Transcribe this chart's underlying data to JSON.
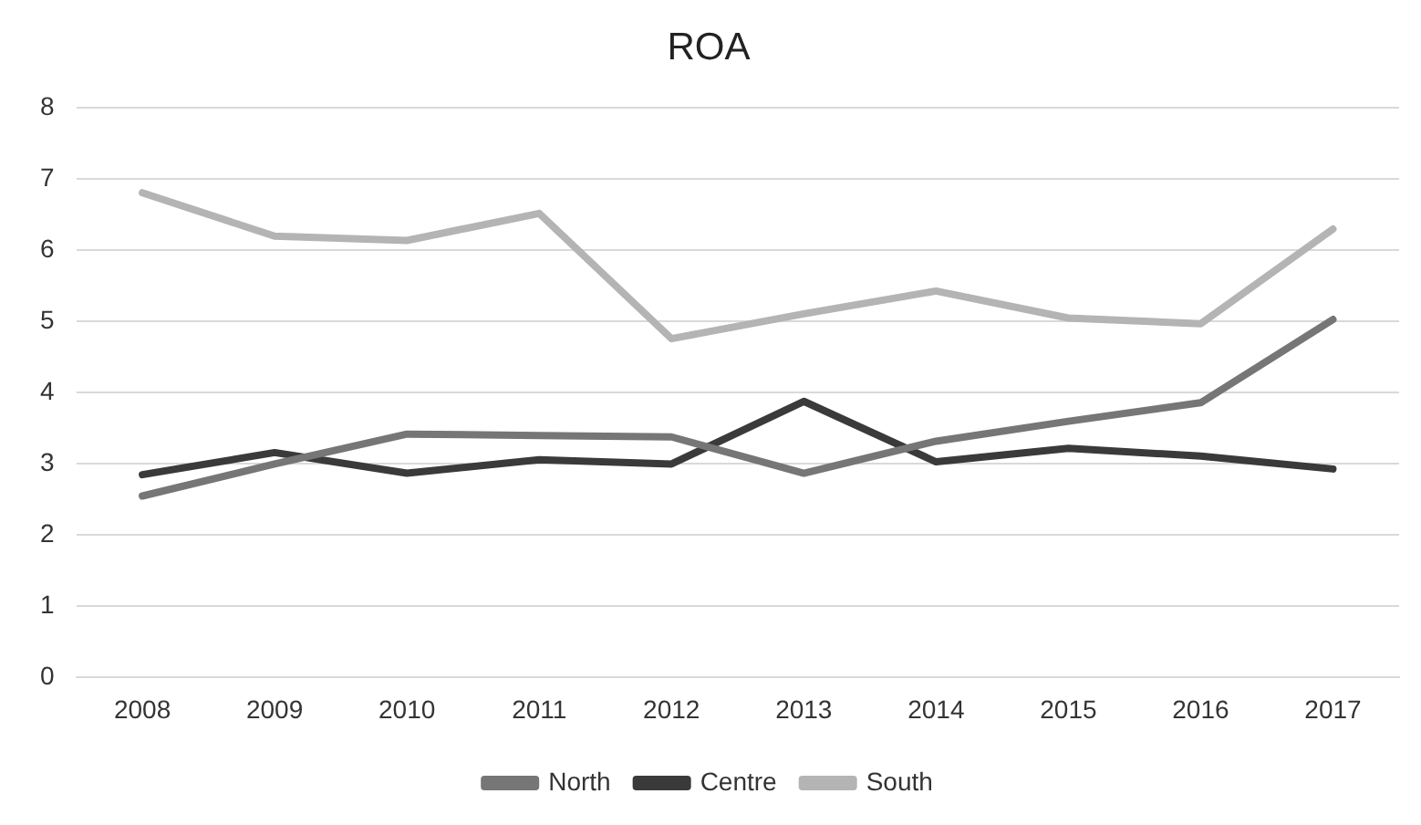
{
  "chart_data": {
    "type": "line",
    "title": "ROA",
    "categories": [
      "2008",
      "2009",
      "2010",
      "2011",
      "2012",
      "2013",
      "2014",
      "2015",
      "2016",
      "2017"
    ],
    "series": [
      {
        "name": "North",
        "color": "#767676",
        "values": [
          2.55,
          3.0,
          3.42,
          3.4,
          3.38,
          2.87,
          3.32,
          3.6,
          3.86,
          5.03
        ]
      },
      {
        "name": "Centre",
        "color": "#3a3a3a",
        "values": [
          2.85,
          3.16,
          2.87,
          3.06,
          3.0,
          3.88,
          3.03,
          3.22,
          3.11,
          2.93
        ]
      },
      {
        "name": "South",
        "color": "#b4b4b4",
        "values": [
          6.81,
          6.2,
          6.14,
          6.52,
          4.76,
          5.11,
          5.43,
          5.05,
          4.97,
          6.3
        ]
      }
    ],
    "ylim": [
      0,
      8
    ],
    "yticks": [
      0,
      1,
      2,
      3,
      4,
      5,
      6,
      7,
      8
    ],
    "grid": "y",
    "legend": "bottom",
    "marker": "none",
    "line_style": "solid"
  }
}
